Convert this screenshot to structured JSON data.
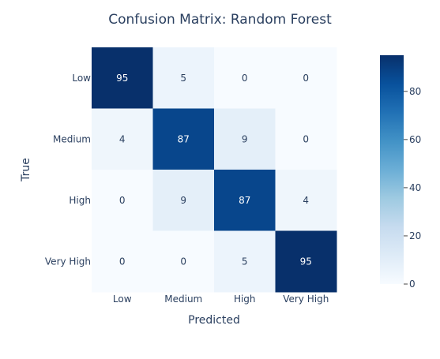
{
  "chart_data": {
    "type": "heatmap",
    "title": "Confusion Matrix: Random Forest",
    "xlabel": "Predicted",
    "ylabel": "True",
    "x_categories": [
      "Low",
      "Medium",
      "High",
      "Very High"
    ],
    "y_categories": [
      "Low",
      "Medium",
      "High",
      "Very High"
    ],
    "z": [
      [
        95,
        5,
        0,
        0
      ],
      [
        4,
        87,
        9,
        0
      ],
      [
        0,
        9,
        87,
        4
      ],
      [
        0,
        0,
        5,
        95
      ]
    ],
    "colorscale": "Blues",
    "zmin": 0,
    "zmax": 95,
    "colorbar_ticks": [
      0,
      20,
      40,
      60,
      80
    ],
    "colorbar_tick_labels": [
      "0",
      "20",
      "40",
      "60",
      "80"
    ]
  }
}
